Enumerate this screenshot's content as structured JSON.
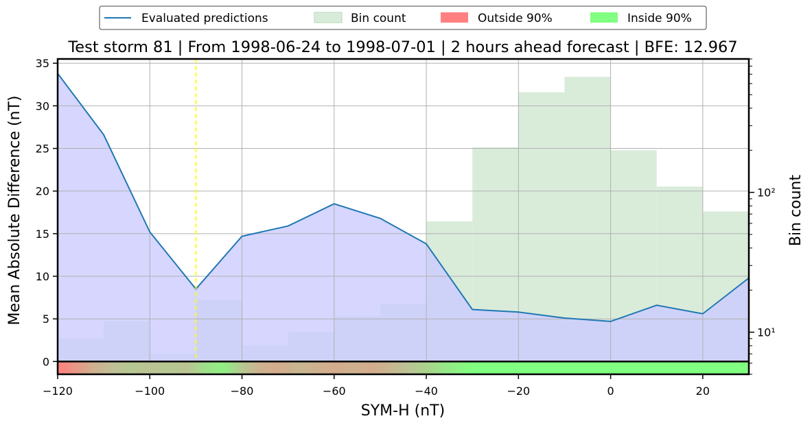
{
  "chart_data": {
    "type": "line",
    "title": "Test storm 81 | From 1998-06-24 to 1998-07-01 | 2 hours ahead forecast | BFE: 12.967",
    "xlabel": "SYM-H (nT)",
    "ylabel": "Mean Absolute Difference (nT)",
    "y2label": "Bin count",
    "xlim": [
      -120,
      30
    ],
    "ylim": [
      -1.5,
      35.5
    ],
    "y2lim": [
      5,
      900
    ],
    "y2scale": "log",
    "x_ticks": [
      -120,
      -100,
      -80,
      -60,
      -40,
      -20,
      0,
      20
    ],
    "x_tick_labels": [
      "−120",
      "−100",
      "−80",
      "−60",
      "−40",
      "−20",
      "0",
      "20"
    ],
    "y_ticks": [
      0,
      5,
      10,
      15,
      20,
      25,
      30,
      35
    ],
    "y2_ticks": [
      10,
      100
    ],
    "y2_tick_labels": [
      "10¹",
      "10²"
    ],
    "grid": true,
    "legend": {
      "placement": "top-center, outside",
      "entries": [
        {
          "label": "Evaluated predictions",
          "kind": "line",
          "color": "#1f77b4"
        },
        {
          "label": "Bin count",
          "kind": "patch",
          "color": "#d9ecda"
        },
        {
          "label": "Outside 90%",
          "kind": "patch",
          "color": "#ff8080"
        },
        {
          "label": "Inside 90%",
          "kind": "patch",
          "color": "#80ff80"
        }
      ]
    },
    "series": [
      {
        "name": "Evaluated predictions",
        "color": "#1f77b4",
        "fill": "#ccccff",
        "x": [
          -120,
          -110,
          -100,
          -90,
          -80,
          -70,
          -60,
          -50,
          -40,
          -30,
          -20,
          -10,
          0,
          10,
          20,
          30
        ],
        "y": [
          33.8,
          26.6,
          15.2,
          8.5,
          14.7,
          15.9,
          18.5,
          16.8,
          13.8,
          6.1,
          5.8,
          5.1,
          4.7,
          6.6,
          5.6,
          9.8
        ]
      },
      {
        "name": "Bin count",
        "color": "#d9ecda",
        "bin_edges": [
          -120,
          -110,
          -100,
          -90,
          -80,
          -70,
          -60,
          -50,
          -40,
          -30,
          -20,
          -10,
          0,
          10,
          20,
          30
        ],
        "counts": [
          9,
          12,
          7,
          17,
          8,
          10,
          13,
          16,
          62,
          210,
          520,
          670,
          200,
          110,
          73
        ]
      }
    ],
    "threshold_line": {
      "x": -90,
      "color": "#ffff00",
      "style": "dashed"
    },
    "coverage_strip": {
      "outside_color": "#ff8080",
      "inside_color": "#80ff80",
      "x": [
        -120,
        -116,
        -112,
        -108,
        -104,
        -100,
        -96,
        -92,
        -88,
        -84,
        -80,
        -76,
        -72,
        -68,
        -64,
        -60,
        -56,
        -52,
        -48,
        -44,
        -40,
        -36,
        -30,
        -20,
        0,
        30
      ],
      "inside": [
        0.0,
        0.15,
        0.35,
        0.5,
        0.6,
        0.55,
        0.6,
        0.55,
        0.8,
        0.9,
        0.6,
        0.35,
        0.3,
        0.4,
        0.35,
        0.3,
        0.35,
        0.3,
        0.4,
        0.55,
        0.7,
        0.85,
        1.0,
        1.0,
        1.0,
        1.0
      ]
    }
  }
}
